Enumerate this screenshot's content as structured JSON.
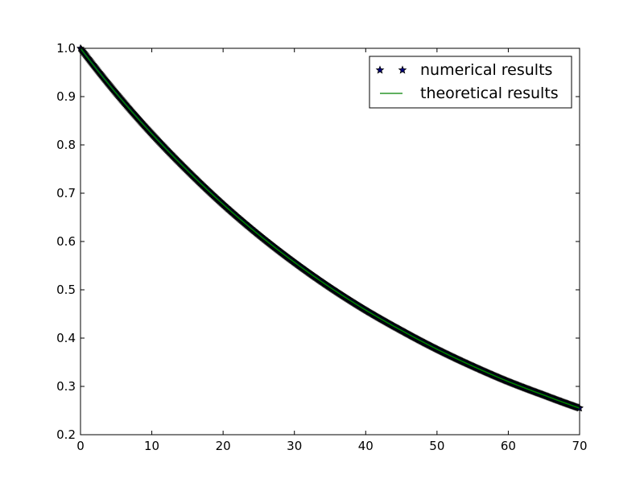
{
  "chart_data": {
    "type": "line",
    "title": "",
    "xlabel": "",
    "ylabel": "",
    "xlim": [
      0,
      70
    ],
    "ylim": [
      0.2,
      1.0
    ],
    "xticks": [
      0,
      10,
      20,
      30,
      40,
      50,
      60,
      70
    ],
    "xtick_labels": [
      "0",
      "10",
      "20",
      "30",
      "40",
      "50",
      "60",
      "70"
    ],
    "yticks": [
      0.2,
      0.3,
      0.4,
      0.5,
      0.6,
      0.7,
      0.8,
      0.9,
      1.0
    ],
    "ytick_labels": [
      "0.2",
      "0.3",
      "0.4",
      "0.5",
      "0.6",
      "0.7",
      "0.8",
      "0.9",
      "1.0"
    ],
    "grid": false,
    "legend_position": "top-right",
    "series": [
      {
        "name": "numerical results",
        "style": "markers",
        "marker": "star",
        "color": "#000080",
        "edge_color": "#000000",
        "x": [
          0,
          5,
          10,
          15,
          20,
          25,
          30,
          35,
          40,
          45,
          50,
          55,
          60,
          65,
          70
        ],
        "y": [
          1.0,
          0.907,
          0.823,
          0.747,
          0.677,
          0.614,
          0.557,
          0.505,
          0.458,
          0.416,
          0.377,
          0.342,
          0.31,
          0.282,
          0.255
        ]
      },
      {
        "name": "theoretical results",
        "style": "line",
        "color": "#008000",
        "x": [
          0,
          5,
          10,
          15,
          20,
          25,
          30,
          35,
          40,
          45,
          50,
          55,
          60,
          65,
          70
        ],
        "y": [
          1.0,
          0.907,
          0.823,
          0.747,
          0.677,
          0.614,
          0.557,
          0.505,
          0.458,
          0.416,
          0.377,
          0.342,
          0.31,
          0.282,
          0.255
        ]
      }
    ]
  }
}
